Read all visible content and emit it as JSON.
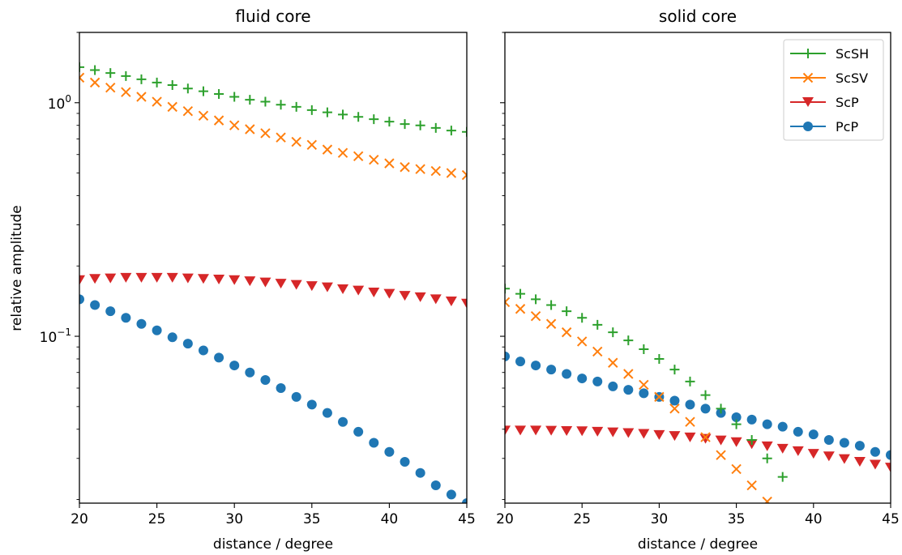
{
  "chart_data": {
    "type": "scatter",
    "ylabel": "relative amplitude",
    "yscale": "log",
    "ylim": [
      0.0193,
      2.0
    ],
    "yticks": [
      {
        "value": 1.0,
        "label": "10",
        "exp": "0"
      },
      {
        "value": 0.1,
        "label": "10",
        "exp": "−1"
      }
    ],
    "shared_y": true,
    "x": [
      20,
      21,
      22,
      23,
      24,
      25,
      26,
      27,
      28,
      29,
      30,
      31,
      32,
      33,
      34,
      35,
      36,
      37,
      38,
      39,
      40,
      41,
      42,
      43,
      44,
      45
    ],
    "legend": {
      "placement": "top-right",
      "panel": 1
    },
    "styles": {
      "ScSH": {
        "color": "#2ca02c",
        "marker": "plus"
      },
      "ScSV": {
        "color": "#ff7f0e",
        "marker": "x"
      },
      "ScP": {
        "color": "#d62728",
        "marker": "triangle-down"
      },
      "PcP": {
        "color": "#1f77b4",
        "marker": "circle"
      }
    },
    "legend_order": [
      "ScSH",
      "ScSV",
      "ScP",
      "PcP"
    ],
    "panels": [
      {
        "title": "fluid core",
        "xlabel": "distance / degree",
        "xlim": [
          20,
          45
        ],
        "xticks": [
          20,
          25,
          30,
          35,
          40,
          45
        ],
        "series": [
          {
            "name": "ScSH",
            "values": [
              1.42,
              1.38,
              1.34,
              1.3,
              1.26,
              1.22,
              1.19,
              1.15,
              1.12,
              1.09,
              1.06,
              1.03,
              1.01,
              0.98,
              0.96,
              0.93,
              0.91,
              0.89,
              0.87,
              0.85,
              0.83,
              0.81,
              0.8,
              0.78,
              0.76,
              0.75
            ]
          },
          {
            "name": "ScSV",
            "values": [
              1.28,
              1.22,
              1.16,
              1.11,
              1.06,
              1.01,
              0.96,
              0.92,
              0.88,
              0.84,
              0.8,
              0.77,
              0.74,
              0.71,
              0.68,
              0.66,
              0.63,
              0.61,
              0.59,
              0.57,
              0.55,
              0.53,
              0.52,
              0.51,
              0.5,
              0.49
            ]
          },
          {
            "name": "ScP",
            "values": [
              0.174,
              0.176,
              0.177,
              0.178,
              0.178,
              0.178,
              0.178,
              0.177,
              0.176,
              0.175,
              0.174,
              0.172,
              0.17,
              0.168,
              0.166,
              0.164,
              0.162,
              0.159,
              0.157,
              0.154,
              0.152,
              0.149,
              0.147,
              0.144,
              0.141,
              0.138
            ]
          },
          {
            "name": "PcP",
            "values": [
              0.144,
              0.136,
              0.128,
              0.12,
              0.113,
              0.106,
              0.099,
              0.093,
              0.087,
              0.081,
              0.075,
              0.07,
              0.065,
              0.06,
              0.055,
              0.051,
              0.047,
              0.043,
              0.039,
              0.035,
              0.032,
              0.029,
              0.026,
              0.023,
              0.021,
              0.0193
            ]
          }
        ]
      },
      {
        "title": "solid core",
        "xlabel": "distance / degree",
        "xlim": [
          20,
          45
        ],
        "xticks": [
          20,
          25,
          30,
          35,
          40,
          45
        ],
        "series": [
          {
            "name": "ScSH",
            "values": [
              0.16,
              0.152,
              0.144,
              0.136,
              0.128,
              0.12,
              0.112,
              0.104,
              0.096,
              0.088,
              0.08,
              0.072,
              0.064,
              0.056,
              0.049,
              0.042,
              0.036,
              0.03,
              0.025
            ]
          },
          {
            "name": "ScSV",
            "values": [
              0.14,
              0.131,
              0.122,
              0.113,
              0.104,
              0.095,
              0.086,
              0.077,
              0.069,
              0.062,
              0.055,
              0.049,
              0.043,
              0.037,
              0.031,
              0.027,
              0.023,
              0.0196
            ]
          },
          {
            "name": "ScP",
            "values": [
              0.0395,
              0.0395,
              0.0395,
              0.0394,
              0.0393,
              0.0392,
              0.039,
              0.0388,
              0.0385,
              0.0382,
              0.0378,
              0.0374,
              0.0369,
              0.0364,
              0.0358,
              0.0352,
              0.0345,
              0.0338,
              0.033,
              0.0322,
              0.0314,
              0.0306,
              0.0298,
              0.029,
              0.0282,
              0.0274
            ]
          },
          {
            "name": "PcP",
            "values": [
              0.082,
              0.078,
              0.075,
              0.072,
              0.069,
              0.066,
              0.064,
              0.061,
              0.059,
              0.057,
              0.055,
              0.053,
              0.051,
              0.049,
              0.047,
              0.045,
              0.044,
              0.042,
              0.041,
              0.039,
              0.038,
              0.036,
              0.035,
              0.034,
              0.032,
              0.031
            ]
          }
        ]
      }
    ]
  }
}
